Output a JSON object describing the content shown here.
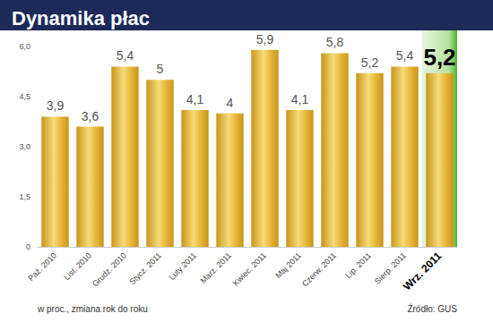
{
  "chart_data": {
    "type": "bar",
    "title": "Dynamika płac",
    "categories": [
      "Paź. 2010",
      "List. 2010",
      "Grudz. 2010",
      "Stycz. 2011",
      "Luty 2011",
      "Marz. 2011",
      "Kwiec. 2011",
      "Maj 2011",
      "Czerw. 2011",
      "Lip. 2011",
      "Sierp. 2011",
      "Wrz. 2011"
    ],
    "values": [
      3.9,
      3.6,
      5.4,
      5,
      4.1,
      4,
      5.9,
      4.1,
      5.8,
      5.2,
      5.4,
      5.2
    ],
    "value_labels": [
      "3,9",
      "3,6",
      "5,4",
      "5",
      "4,1",
      "4",
      "5,9",
      "4,1",
      "5,8",
      "5,2",
      "5,4",
      "5,2"
    ],
    "data_labels": true,
    "color": "#c8961a",
    "ylim": [
      0,
      6
    ],
    "yticks": [
      0,
      {
        "value": 1.5,
        "label": "1,5"
      },
      {
        "value": 3,
        "label": "3,0"
      },
      {
        "value": 4.5,
        "label": "4,5"
      },
      {
        "value": 6,
        "label": "6,0"
      }
    ],
    "grid": false,
    "y_label": "w proc., zmiana rok do roku",
    "source": "Źródło: GUS"
  }
}
